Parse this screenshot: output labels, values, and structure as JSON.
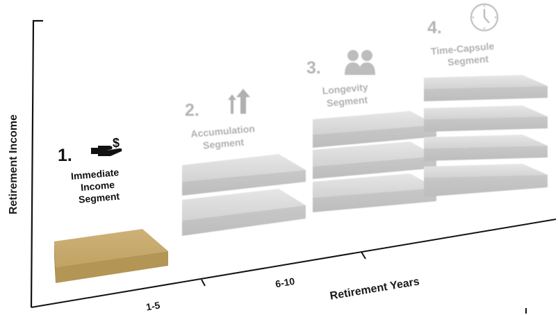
{
  "axes": {
    "y_label": "Retirement Income",
    "x_label": "Retirement Years",
    "x_ticks": [
      "1-5",
      "6-10"
    ]
  },
  "segments": [
    {
      "number": "1.",
      "name_lines": [
        "Immediate",
        "Income",
        "Segment"
      ],
      "icon": "hand-dollar-icon",
      "color": "#c4a869",
      "slabs": 1
    },
    {
      "number": "2.",
      "name_lines": [
        "Accumulation",
        "Segment"
      ],
      "icon": "growth-arrows-icon",
      "color": "#d6d6d6",
      "slabs": 2
    },
    {
      "number": "3.",
      "name_lines": [
        "Longevity",
        "Segment"
      ],
      "icon": "elderly-couple-icon",
      "color": "#d6d6d6",
      "slabs": 3
    },
    {
      "number": "4.",
      "name_lines": [
        "Time-Capsule",
        "Segment"
      ],
      "icon": "clock-icon",
      "color": "#d6d6d6",
      "slabs": 4
    }
  ]
}
